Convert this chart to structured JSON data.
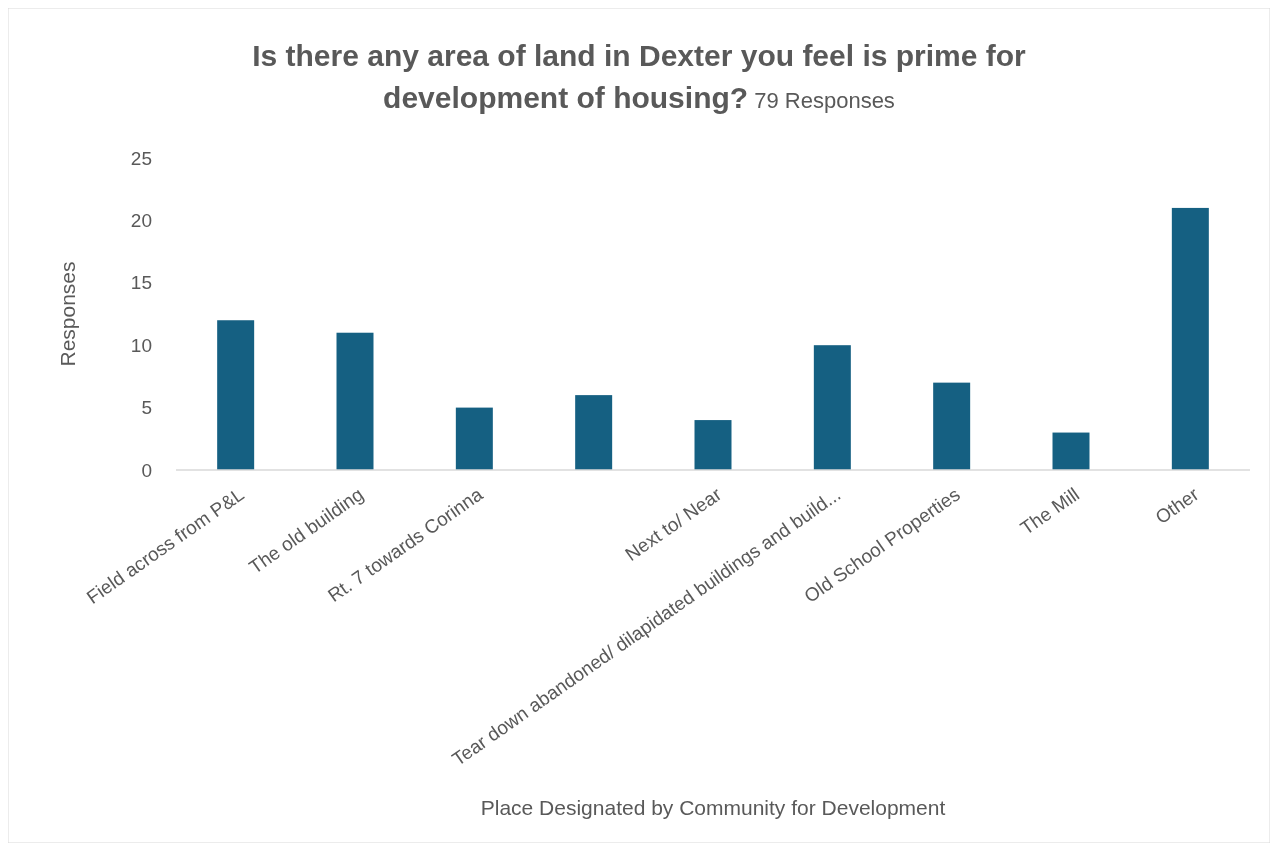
{
  "chart_data": {
    "type": "bar",
    "title": "Is there any area of land in Dexter you feel is prime for development of housing?",
    "subtitle": "79 Responses",
    "xlabel": "Place Designated by Community for Development",
    "ylabel": "Responses",
    "categories": [
      "Field across from P&L",
      "The old building",
      "Rt. 7 towards Corinna",
      null,
      "Next to/ Near",
      "Tear down abandoned/ dilapidated buildings and build...",
      "Old School Properties",
      "The Mill",
      "Other"
    ],
    "values": [
      12,
      11,
      5,
      6,
      4,
      10,
      7,
      3,
      21
    ],
    "color": "#156082",
    "ylim": [
      0,
      25
    ],
    "yticks": [
      0,
      5,
      10,
      15,
      20,
      25
    ],
    "grid": false
  }
}
